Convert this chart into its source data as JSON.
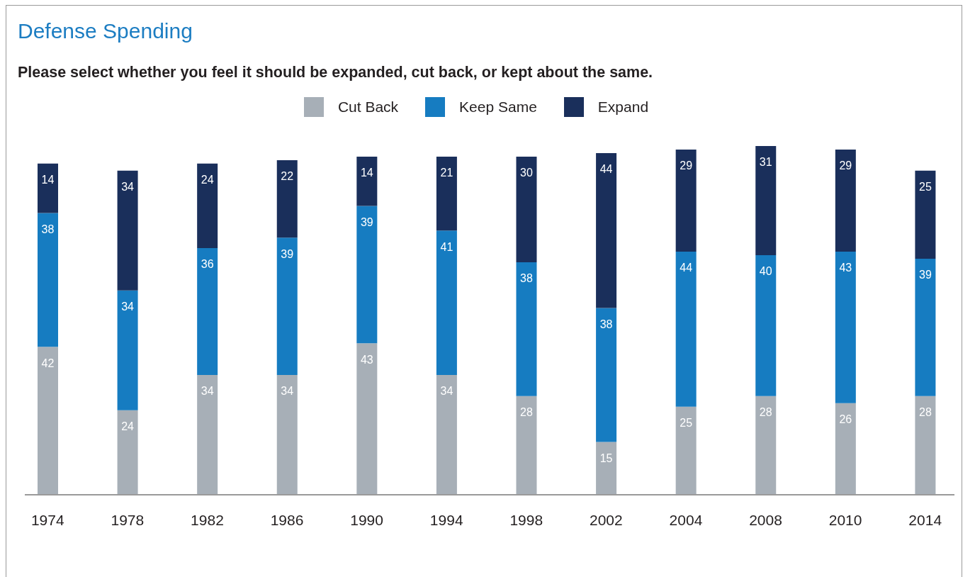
{
  "chart_data": {
    "type": "bar",
    "title": "Defense Spending",
    "subtitle": "Please select whether you feel it should be expanded, cut back, or kept about the same.",
    "categories": [
      "1974",
      "1978",
      "1982",
      "1986",
      "1990",
      "1994",
      "1998",
      "2002",
      "2004",
      "2008",
      "2010",
      "2014"
    ],
    "series": [
      {
        "name": "Cut Back",
        "color": "#a7afb7",
        "values": [
          42,
          24,
          34,
          34,
          43,
          34,
          28,
          15,
          25,
          28,
          26,
          28
        ]
      },
      {
        "name": "Keep Same",
        "color": "#167cc1",
        "values": [
          38,
          34,
          36,
          39,
          39,
          41,
          38,
          38,
          44,
          40,
          43,
          39
        ]
      },
      {
        "name": "Expand",
        "color": "#1a2f5b",
        "values": [
          14,
          34,
          24,
          22,
          14,
          21,
          30,
          44,
          29,
          31,
          29,
          25
        ]
      }
    ],
    "stacked": true,
    "data_labels": true,
    "legend": "top"
  }
}
